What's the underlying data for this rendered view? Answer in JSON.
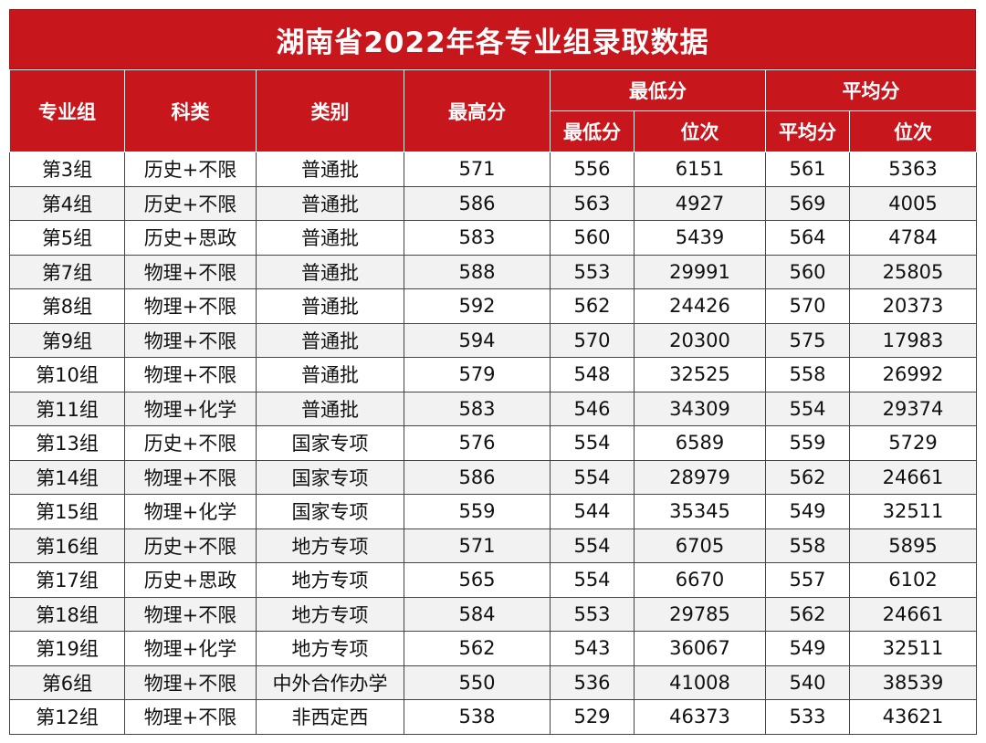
{
  "title": "湖南省2022年各专业组录取数据",
  "headers": {
    "group": "专业组",
    "subject": "科类",
    "category": "类别",
    "max_score": "最高分",
    "min_group": "最低分",
    "avg_group": "平均分",
    "min_score": "最低分",
    "min_rank": "位次",
    "avg_score": "平均分",
    "avg_rank": "位次"
  },
  "rows": [
    [
      "第3组",
      "历史+不限",
      "普通批",
      "571",
      "556",
      "6151",
      "561",
      "5363"
    ],
    [
      "第4组",
      "历史+不限",
      "普通批",
      "586",
      "563",
      "4927",
      "569",
      "4005"
    ],
    [
      "第5组",
      "历史+思政",
      "普通批",
      "583",
      "560",
      "5439",
      "564",
      "4784"
    ],
    [
      "第7组",
      "物理+不限",
      "普通批",
      "588",
      "553",
      "29991",
      "560",
      "25805"
    ],
    [
      "第8组",
      "物理+不限",
      "普通批",
      "592",
      "562",
      "24426",
      "570",
      "20373"
    ],
    [
      "第9组",
      "物理+不限",
      "普通批",
      "594",
      "570",
      "20300",
      "575",
      "17983"
    ],
    [
      "第10组",
      "物理+不限",
      "普通批",
      "579",
      "548",
      "32525",
      "558",
      "26992"
    ],
    [
      "第11组",
      "物理+化学",
      "普通批",
      "583",
      "546",
      "34309",
      "554",
      "29374"
    ],
    [
      "第13组",
      "历史+不限",
      "国家专项",
      "576",
      "554",
      "6589",
      "559",
      "5729"
    ],
    [
      "第14组",
      "物理+不限",
      "国家专项",
      "586",
      "554",
      "28979",
      "562",
      "24661"
    ],
    [
      "第15组",
      "物理+化学",
      "国家专项",
      "559",
      "544",
      "35345",
      "549",
      "32511"
    ],
    [
      "第16组",
      "历史+不限",
      "地方专项",
      "571",
      "554",
      "6705",
      "558",
      "5895"
    ],
    [
      "第17组",
      "历史+思政",
      "地方专项",
      "565",
      "554",
      "6670",
      "557",
      "6102"
    ],
    [
      "第18组",
      "物理+不限",
      "地方专项",
      "584",
      "553",
      "29785",
      "562",
      "24661"
    ],
    [
      "第19组",
      "物理+化学",
      "地方专项",
      "562",
      "543",
      "36067",
      "549",
      "32511"
    ],
    [
      "第6组",
      "物理+不限",
      "中外合作办学",
      "550",
      "536",
      "41008",
      "540",
      "38539"
    ],
    [
      "第12组",
      "物理+不限",
      "非西定西",
      "538",
      "529",
      "46373",
      "533",
      "43621"
    ]
  ],
  "colors": {
    "header_red": "#c8161d",
    "stripe": "#f2f2f2",
    "border": "#444444"
  }
}
